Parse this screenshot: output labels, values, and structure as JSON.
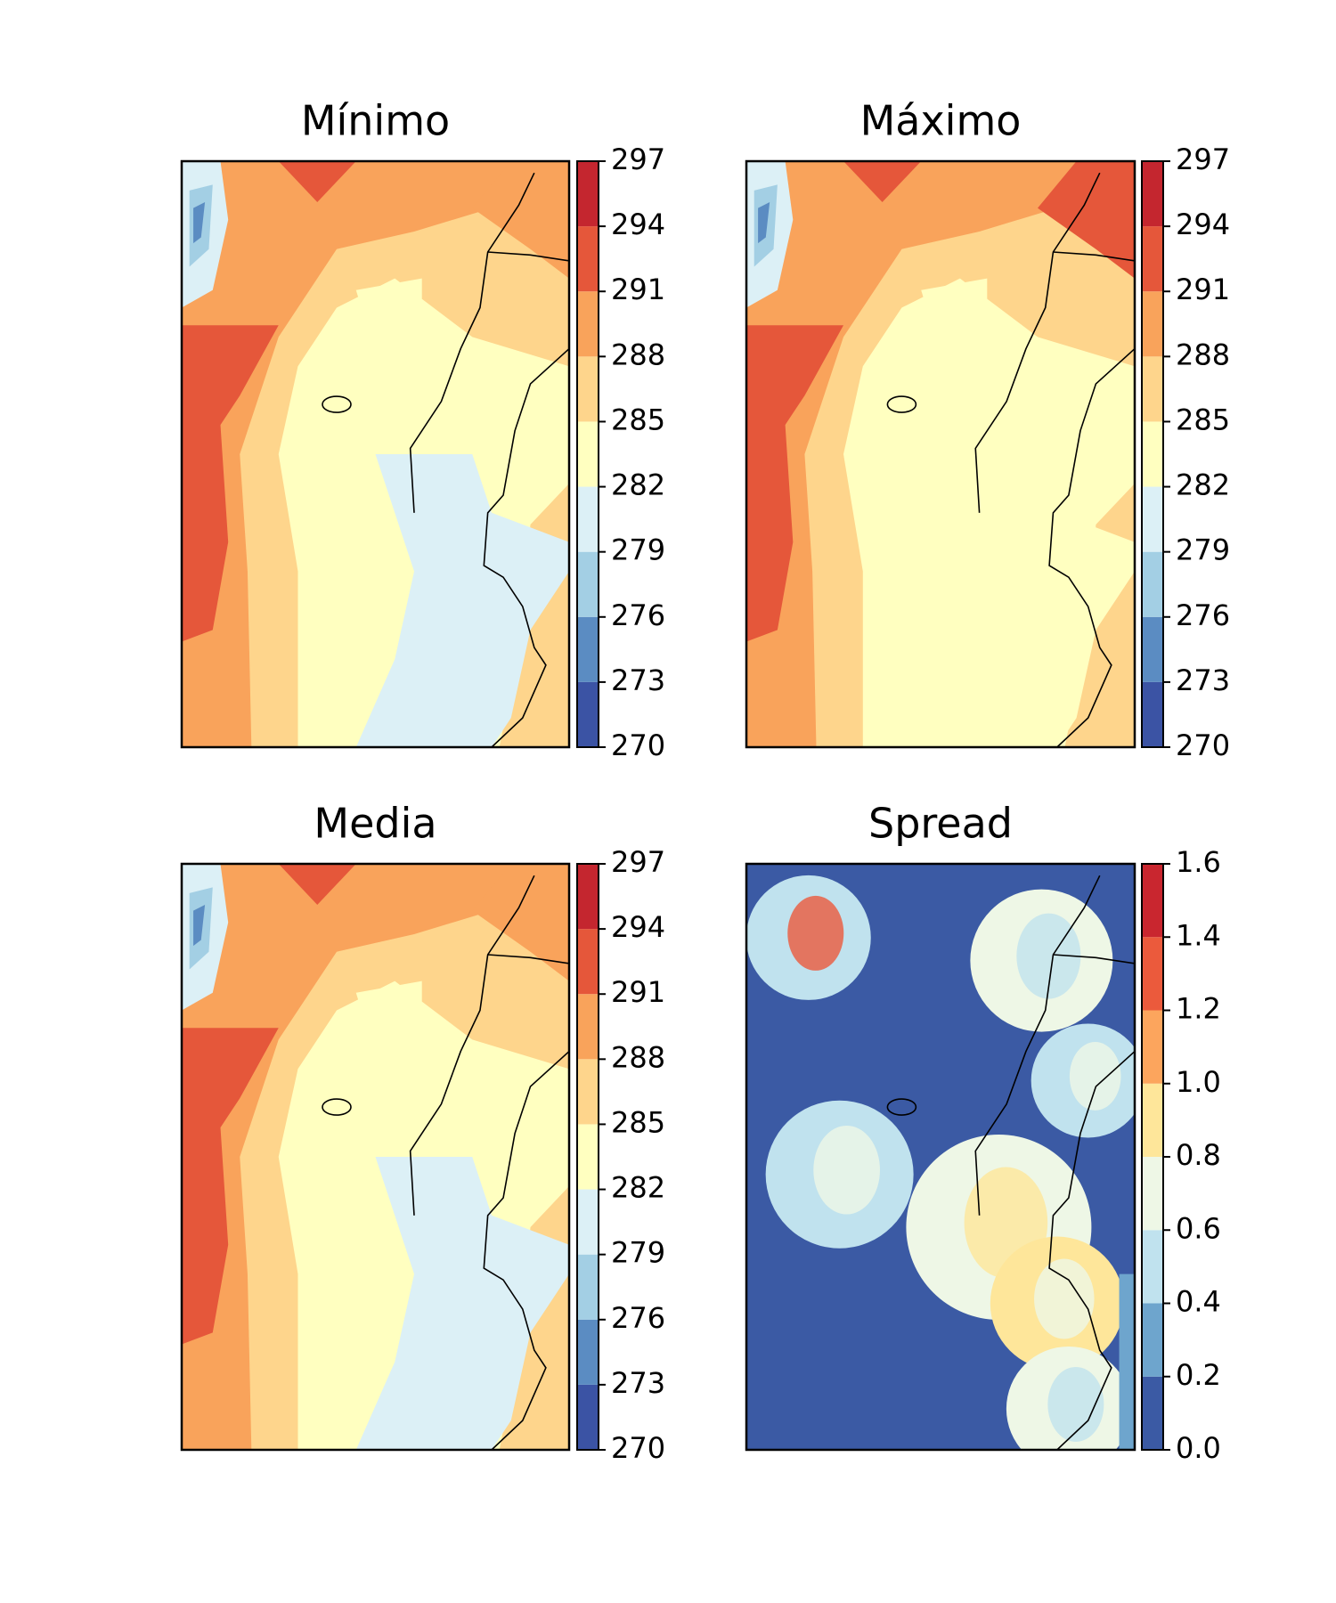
{
  "chart_data": [
    {
      "type": "contour",
      "title": "Mínimo",
      "clim": [
        270,
        297
      ],
      "cticks": [
        270,
        273,
        276,
        279,
        282,
        285,
        288,
        291,
        294,
        297
      ],
      "colors": [
        "#3b53a4",
        "#5b8cc2",
        "#a3cfe4",
        "#dcf0f6",
        "#ffffc0",
        "#fed58c",
        "#f9a35b",
        "#e5573a",
        "#c4262f"
      ]
    },
    {
      "type": "contour",
      "title": "Máximo",
      "clim": [
        270,
        297
      ],
      "cticks": [
        270,
        273,
        276,
        279,
        282,
        285,
        288,
        291,
        294,
        297
      ],
      "colors": [
        "#3b53a4",
        "#5b8cc2",
        "#a3cfe4",
        "#dcf0f6",
        "#ffffc0",
        "#fed58c",
        "#f9a35b",
        "#e5573a",
        "#c4262f"
      ]
    },
    {
      "type": "contour",
      "title": "Media",
      "clim": [
        270,
        297
      ],
      "cticks": [
        270,
        273,
        276,
        279,
        282,
        285,
        288,
        291,
        294,
        297
      ],
      "colors": [
        "#3b53a4",
        "#5b8cc2",
        "#a3cfe4",
        "#dcf0f6",
        "#ffffc0",
        "#fed58c",
        "#f9a35b",
        "#e5573a",
        "#c4262f"
      ]
    },
    {
      "type": "contour",
      "title": "Spread",
      "clim": [
        0,
        1.6
      ],
      "cticks": [
        {
          "value": 0,
          "label": "0.0"
        },
        0.2,
        0.4,
        0.6,
        0.8,
        {
          "value": 1,
          "label": "1.0"
        },
        1.2,
        1.4,
        1.6
      ],
      "colors": [
        "#3b5aa4",
        "#6ea5cd",
        "#c0e2ee",
        "#eef7e6",
        "#fee69a",
        "#fca55d",
        "#eb5a3c",
        "#c9262f"
      ]
    }
  ]
}
